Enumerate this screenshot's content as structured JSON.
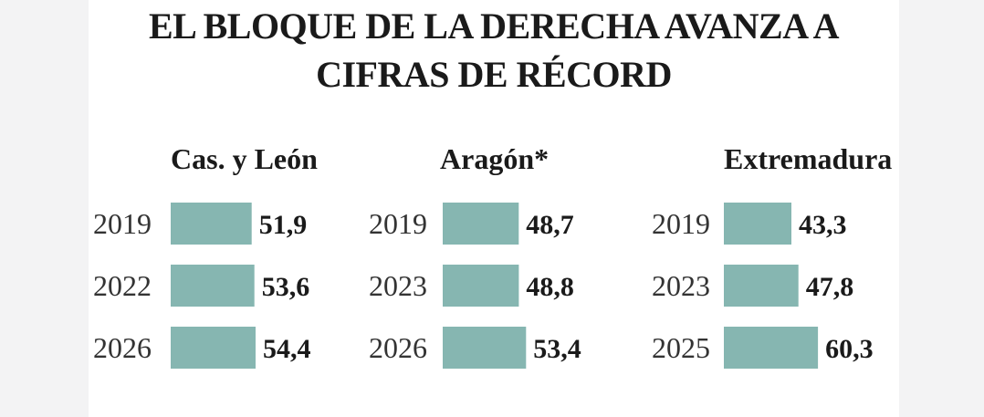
{
  "title": {
    "line1": "EL BLOQUE DE LA DERECHA AVANZA A",
    "line2": "CIFRAS DE RÉCORD"
  },
  "colors": {
    "bar": "#86b6b1",
    "text": "#1a1a1a",
    "year_text": "#333333"
  },
  "chart_data": {
    "type": "bar",
    "orientation": "horizontal",
    "title": "EL BLOQUE DE LA DERECHA AVANZA A CIFRAS DE RÉCORD",
    "panels": [
      {
        "name": "Cas. y León",
        "categories": [
          "2019",
          "2022",
          "2026"
        ],
        "values": [
          51.9,
          53.6,
          54.4
        ],
        "labels": [
          "51,9",
          "53,6",
          "54,4"
        ]
      },
      {
        "name": "Aragón*",
        "categories": [
          "2019",
          "2023",
          "2026"
        ],
        "values": [
          48.7,
          48.8,
          53.4
        ],
        "labels": [
          "48,7",
          "48,8",
          "53,4"
        ]
      },
      {
        "name": "Extremadura",
        "categories": [
          "2019",
          "2023",
          "2025"
        ],
        "values": [
          43.3,
          47.8,
          60.3
        ],
        "labels": [
          "43,3",
          "47,8",
          "60,3"
        ]
      }
    ]
  }
}
